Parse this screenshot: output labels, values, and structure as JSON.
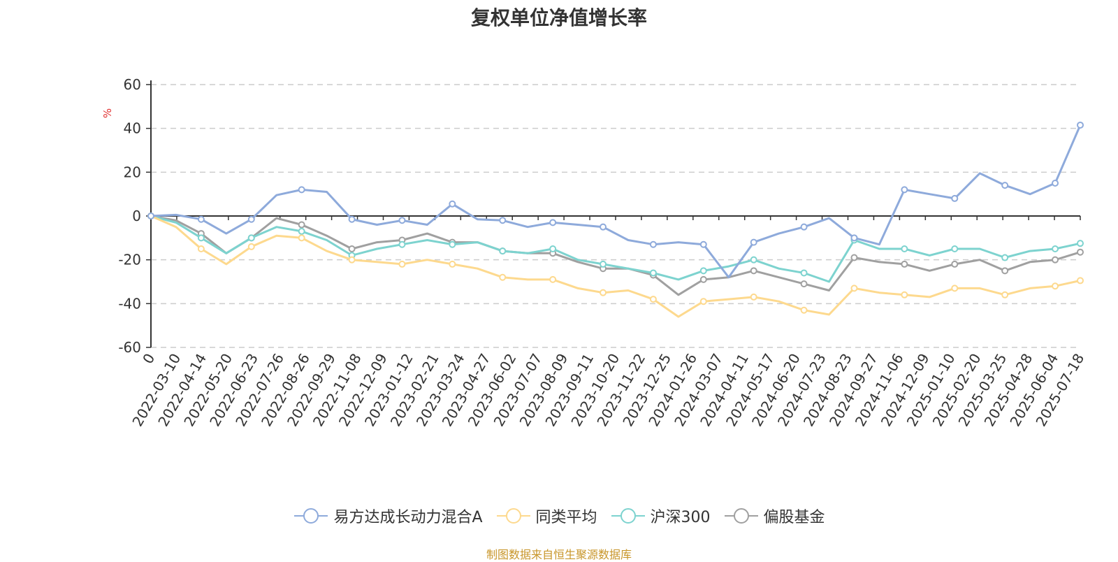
{
  "chart_data": {
    "type": "line",
    "title": "复权单位净值增长率",
    "ylabel": "%",
    "ylim": [
      -60,
      60
    ],
    "yticks": [
      "60",
      "40",
      "20",
      "0",
      "-20",
      "-40",
      "-60"
    ],
    "grid": true,
    "legend_position": "bottom",
    "x_tick_labels": [
      "0",
      "2022-03-10",
      "2022-04-14",
      "2022-05-20",
      "2022-06-23",
      "2022-07-26",
      "2022-08-26",
      "2022-09-29",
      "2022-11-08",
      "2022-12-09",
      "2023-01-12",
      "2023-02-21",
      "2023-03-24",
      "2023-04-27",
      "2023-06-02",
      "2023-07-07",
      "2023-08-09",
      "2023-09-11",
      "2023-10-20",
      "2023-11-22",
      "2023-12-25",
      "2024-01-26",
      "2024-03-07",
      "2024-04-11",
      "2024-05-17",
      "2024-06-20",
      "2024-07-23",
      "2024-08-23",
      "2024-09-27",
      "2024-11-06",
      "2024-12-09",
      "2025-01-10",
      "2025-02-20",
      "2025-03-25",
      "2025-04-28",
      "2025-06-04",
      "2025-07-18"
    ],
    "series": [
      {
        "name": "易方达成长动力混合A",
        "color": "#8eaadb",
        "values": [
          0,
          0.5,
          -1.5,
          -8.0,
          -1.5,
          9.5,
          12.0,
          11.0,
          -1.5,
          -4.0,
          -2.0,
          -4.0,
          5.5,
          -1.5,
          -2.0,
          -5.0,
          -3.0,
          -4.0,
          -5.0,
          -11.0,
          -13.0,
          -12.0,
          -13.0,
          -28.0,
          -12.0,
          -8.0,
          -5.0,
          -1.0,
          -10.0,
          -13.0,
          12.0,
          10.0,
          8.0,
          19.5,
          14.0,
          10.0,
          15.0,
          41.5
        ]
      },
      {
        "name": "同类平均",
        "color": "#fdd98e",
        "values": [
          0,
          -5.0,
          -15.0,
          -22.0,
          -14.0,
          -9.0,
          -10.0,
          -16.0,
          -20.0,
          -21.0,
          -22.0,
          -20.0,
          -22.0,
          -24.0,
          -28.0,
          -29.0,
          -29.0,
          -33.0,
          -35.0,
          -34.0,
          -38.0,
          -46.0,
          -39.0,
          -38.0,
          -37.0,
          -39.0,
          -43.0,
          -45.0,
          -33.0,
          -35.0,
          -36.0,
          -37.0,
          -33.0,
          -33.0,
          -36.0,
          -33.0,
          -32.0,
          -29.5
        ]
      },
      {
        "name": "沪深300",
        "color": "#7dd3cf",
        "values": [
          0,
          -3.0,
          -10.0,
          -17.0,
          -10.0,
          -5.0,
          -7.0,
          -11.0,
          -18.0,
          -15.0,
          -13.0,
          -11.0,
          -13.0,
          -12.0,
          -16.0,
          -17.0,
          -15.0,
          -20.0,
          -22.0,
          -24.0,
          -26.0,
          -29.0,
          -25.0,
          -23.0,
          -20.0,
          -24.0,
          -26.0,
          -30.0,
          -11.0,
          -15.0,
          -15.0,
          -18.0,
          -15.0,
          -15.0,
          -19.0,
          -16.0,
          -15.0,
          -12.5
        ]
      },
      {
        "name": "偏股基金",
        "color": "#a0a0a0",
        "values": [
          0,
          -2.0,
          -8.0,
          -17.0,
          -10.0,
          -1.0,
          -4.0,
          -9.0,
          -15.0,
          -12.0,
          -11.0,
          -8.0,
          -12.0,
          -12.0,
          -16.0,
          -17.0,
          -17.0,
          -21.0,
          -24.0,
          -24.0,
          -27.0,
          -36.0,
          -29.0,
          -28.0,
          -25.0,
          -28.0,
          -31.0,
          -34.0,
          -19.0,
          -21.0,
          -22.0,
          -25.0,
          -22.0,
          -20.0,
          -25.0,
          -21.0,
          -20.0,
          -16.5
        ]
      }
    ]
  },
  "source_note": "制图数据来自恒生聚源数据库"
}
